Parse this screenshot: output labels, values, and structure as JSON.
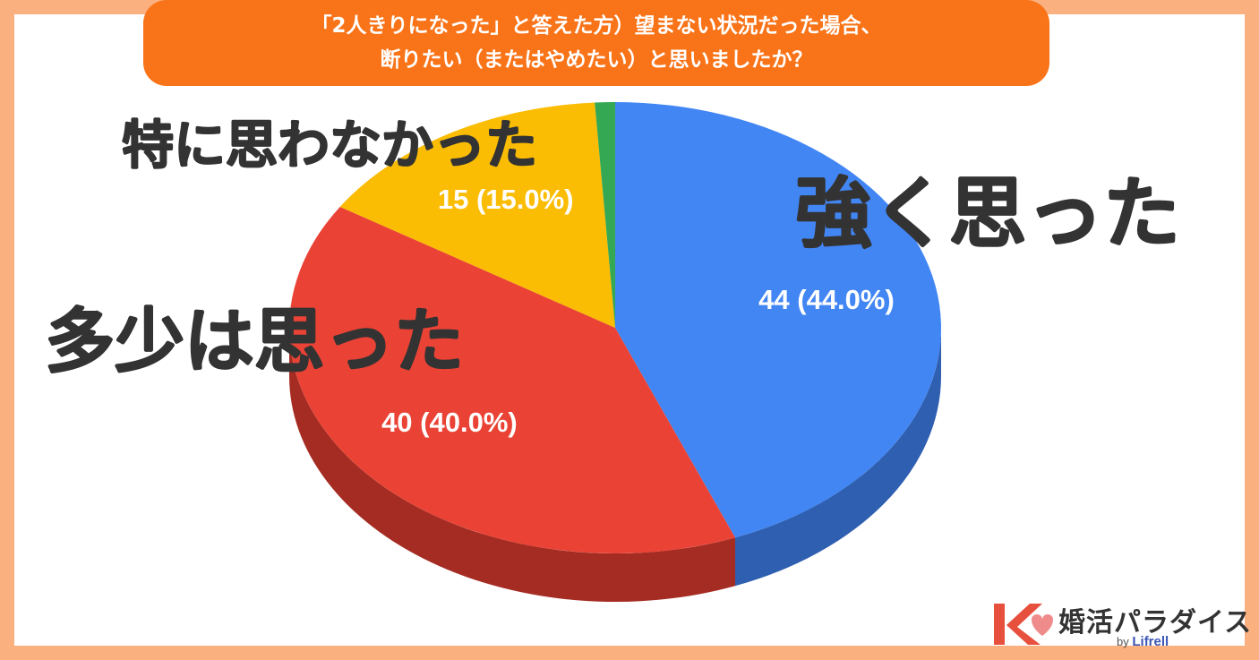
{
  "header": {
    "line1": "「2人きりになった」と答えた方）望まない状況だった場合、",
    "line2": "断りたい（またはやめたい）と思いましたか？"
  },
  "chart_data": {
    "type": "pie",
    "style": "3d",
    "slices": [
      {
        "name": "強く思った",
        "value": 44,
        "label": "44 (44.0%)",
        "color": "#4286f4",
        "side_color": "#2f5fb0"
      },
      {
        "name": "多少は思った",
        "value": 40,
        "label": "40 (40.0%)",
        "color": "#ea4335",
        "side_color": "#a52c23"
      },
      {
        "name": "特に思わなかった",
        "value": 15,
        "label": "15 (15.0%)",
        "color": "#fbbc04",
        "side_color": "#b38603"
      },
      {
        "name": "",
        "value": 1,
        "label": "",
        "color": "#34a853",
        "side_color": "#24763a"
      }
    ]
  },
  "labels": {
    "strong": "強く思った",
    "somewhat": "多少は思った",
    "notreally": "特に思わなかった"
  },
  "brand": {
    "name": "婚活パラダイス",
    "by": "by",
    "company": "Lifrell"
  },
  "colors": {
    "background": "#fbb07f",
    "title_bg": "#f97419",
    "logo_red": "#e8503e",
    "logo_pink": "#f08b8b"
  }
}
